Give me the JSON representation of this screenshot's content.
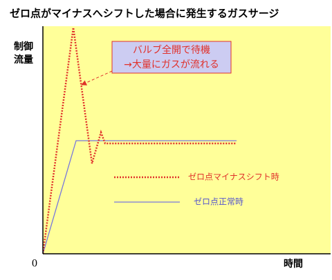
{
  "header": {
    "title": "ゼロ点がマイナスへシフトした場合に発生するガスサージ"
  },
  "axes": {
    "y_label": [
      "制御",
      "流量"
    ],
    "origin_label": "0",
    "x_label": "時間"
  },
  "callout": {
    "lines": [
      "バルブ全開で待機",
      "→大量にガスが流れる"
    ]
  },
  "legend": {
    "items": [
      {
        "label": "ゼロ点マイナスシフト時"
      },
      {
        "label": "ゼロ点正常時"
      }
    ]
  }
}
